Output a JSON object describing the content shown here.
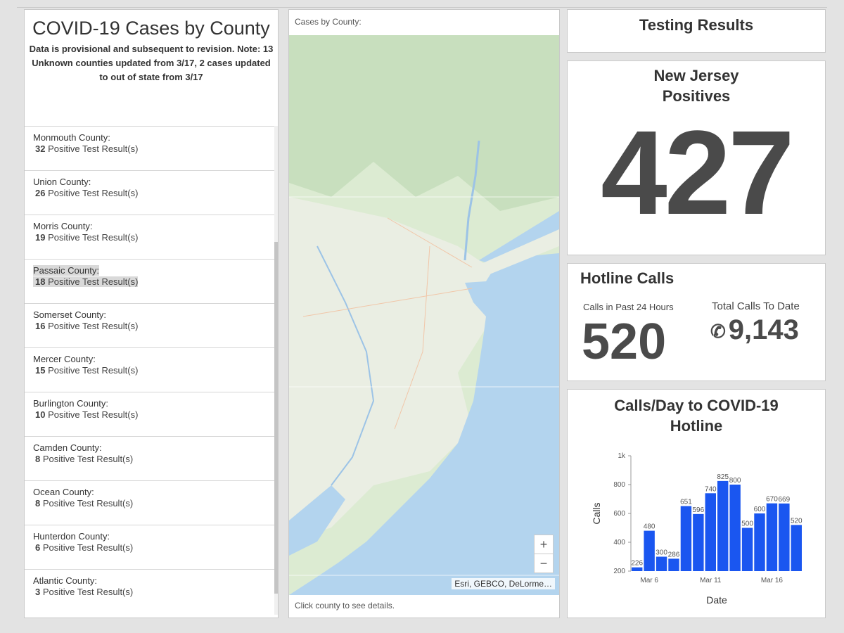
{
  "list": {
    "title": "COVID-19 Cases by County",
    "subtitle": "Data is provisional and subsequent to revision. Note: 13 Unknown counties updated from 3/17, 2 cases updated to out of state from 3/17",
    "items": [
      {
        "county": "Monmouth County:",
        "count": "32",
        "label": "Positive Test Result(s)"
      },
      {
        "county": "Union County:",
        "count": "26",
        "label": "Positive Test Result(s)"
      },
      {
        "county": "Morris County:",
        "count": "19",
        "label": "Positive Test Result(s)"
      },
      {
        "county": "Passaic County:",
        "count": "18",
        "label": "Positive Test Result(s)"
      },
      {
        "county": "Somerset County:",
        "count": "16",
        "label": "Positive Test Result(s)"
      },
      {
        "county": "Mercer County:",
        "count": "15",
        "label": "Positive Test Result(s)"
      },
      {
        "county": "Burlington County:",
        "count": "10",
        "label": "Positive Test Result(s)"
      },
      {
        "county": "Camden County:",
        "count": "8",
        "label": "Positive Test Result(s)"
      },
      {
        "county": "Ocean County:",
        "count": "8",
        "label": "Positive Test Result(s)"
      },
      {
        "county": "Hunterdon County:",
        "count": "6",
        "label": "Positive Test Result(s)"
      },
      {
        "county": "Atlantic County:",
        "count": "3",
        "label": "Positive Test Result(s)"
      }
    ]
  },
  "map": {
    "caption": "Cases by County:",
    "footer": "Click county to see details.",
    "zoom_in": "+",
    "zoom_out": "−",
    "attribution": "Esri, GEBCO, DeLorme…"
  },
  "testing": {
    "title": "Testing Results"
  },
  "positives": {
    "title_line1": "New Jersey",
    "title_line2": "Positives",
    "value": "427"
  },
  "hotline": {
    "title": "Hotline Calls",
    "past24_label": "Calls in Past 24 Hours",
    "past24_value": "520",
    "total_label": "Total Calls To Date",
    "total_value": "9,143",
    "phone_icon": "✆"
  },
  "calls_chart": {
    "title_line1": "Calls/Day to COVID-19",
    "title_line2": "Hotline"
  },
  "chart_data": {
    "type": "bar",
    "title": "Calls/Day to COVID-19 Hotline",
    "xlabel": "Date",
    "ylabel": "Calls",
    "x_tick_labels": [
      "Mar 6",
      "Mar 11",
      "Mar 16"
    ],
    "y_tick_labels": [
      "200",
      "400",
      "600",
      "800",
      "1k"
    ],
    "ylim": [
      200,
      1000
    ],
    "categories": [
      "Mar 5",
      "Mar 6",
      "Mar 7",
      "Mar 8",
      "Mar 9",
      "Mar 10",
      "Mar 11",
      "Mar 12",
      "Mar 13",
      "Mar 14",
      "Mar 15",
      "Mar 16",
      "Mar 17",
      "Mar 18"
    ],
    "values": [
      226,
      480,
      300,
      286,
      651,
      596,
      740,
      825,
      800,
      500,
      600,
      670,
      669,
      520
    ],
    "bar_color": "#1a56f0",
    "grid": false
  }
}
